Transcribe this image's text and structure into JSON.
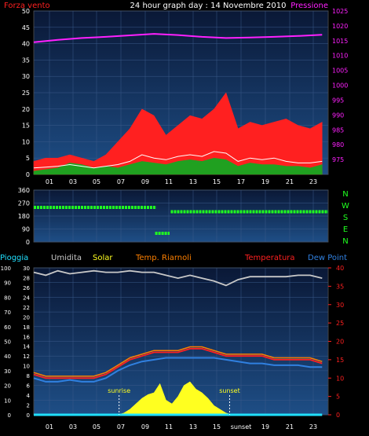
{
  "colors": {
    "background": "#000000",
    "plot_bg_top": "#0a1836",
    "plot_bg_bottom": "#1e4e86",
    "grid": "#3a5a8a",
    "wind_gust": "#ff2020",
    "wind_avg": "#ffffff",
    "wind_low": "#20a020",
    "pressure": "#ff20ff",
    "direction": "#20ff20",
    "humidity": "#c8c8c8",
    "temp": "#ff2020",
    "temp_room": "#ff8000",
    "dew_point": "#3080e0",
    "rain": "#20e0ff",
    "solar": "#ffff20",
    "tick_white": "#ffffff",
    "tick_green": "#20ff20"
  },
  "chart_data": [
    {
      "type": "line",
      "title": "24 hour graph day : 14 Novembre 2010",
      "left_label": "Forza vento",
      "right_label": "Pressione",
      "x_ticks": [
        "01",
        "03",
        "05",
        "07",
        "09",
        "11",
        "13",
        "15",
        "17",
        "19",
        "21",
        "23"
      ],
      "y_left": {
        "range": [
          0,
          50
        ],
        "ticks": [
          0,
          5,
          10,
          15,
          20,
          25,
          30,
          35,
          40,
          45,
          50
        ]
      },
      "y_right": {
        "range": [
          970,
          1025
        ],
        "ticks": [
          975,
          980,
          985,
          990,
          995,
          1000,
          1005,
          1010,
          1015,
          1020,
          1025
        ]
      },
      "series": [
        {
          "name": "Pressione",
          "axis": "right",
          "x": [
            0,
            2,
            4,
            6,
            8,
            10,
            12,
            14,
            16,
            18,
            20,
            22,
            24
          ],
          "values": [
            1014.5,
            1015.3,
            1015.9,
            1016.3,
            1016.8,
            1017.3,
            1016.9,
            1016.3,
            1015.9,
            1016.1,
            1016.3,
            1016.6,
            1017.0
          ]
        },
        {
          "name": "gust",
          "axis": "left",
          "x": [
            0,
            1,
            2,
            3,
            4,
            5,
            6,
            7,
            8,
            9,
            10,
            11,
            12,
            13,
            14,
            15,
            16,
            17,
            18,
            19,
            20,
            21,
            22,
            23,
            24
          ],
          "values": [
            4,
            5,
            5,
            6,
            5,
            4,
            6,
            10,
            14,
            20,
            18,
            12,
            15,
            18,
            17,
            20,
            25,
            14,
            16,
            15,
            16,
            17,
            15,
            14,
            16
          ]
        },
        {
          "name": "avg",
          "axis": "left",
          "x": [
            0,
            1,
            2,
            3,
            4,
            5,
            6,
            7,
            8,
            9,
            10,
            11,
            12,
            13,
            14,
            15,
            16,
            17,
            18,
            19,
            20,
            21,
            22,
            23,
            24
          ],
          "values": [
            2,
            2.2,
            2.5,
            3,
            2.5,
            2,
            2.5,
            3,
            4,
            6,
            5,
            4.5,
            5.5,
            6,
            5.5,
            7,
            6.5,
            4,
            5,
            4.5,
            5,
            4,
            3.5,
            3.5,
            4
          ]
        },
        {
          "name": "low",
          "axis": "left",
          "x": [
            0,
            1,
            2,
            3,
            4,
            5,
            6,
            7,
            8,
            9,
            10,
            11,
            12,
            13,
            14,
            15,
            16,
            17,
            18,
            19,
            20,
            21,
            22,
            23,
            24
          ],
          "values": [
            1,
            1.5,
            2,
            3.5,
            3,
            2,
            2.5,
            2,
            3,
            4,
            3.5,
            3,
            4,
            4.5,
            4,
            5,
            4.5,
            2.5,
            3.5,
            3,
            3,
            2.5,
            2.5,
            2,
            3
          ]
        }
      ]
    },
    {
      "type": "scatter",
      "y_left": {
        "range": [
          0,
          360
        ],
        "ticks": [
          0,
          90,
          180,
          270,
          360
        ]
      },
      "right_labels": [
        "N",
        "W",
        "S",
        "E",
        "N"
      ],
      "series": [
        {
          "name": "direction",
          "segments": [
            {
              "x_start": 0.0,
              "x_end": 10.2,
              "value": 240
            },
            {
              "x_start": 10.1,
              "x_end": 11.3,
              "value": 60
            },
            {
              "x_start": 11.4,
              "x_end": 24.5,
              "value": 210
            }
          ]
        }
      ]
    },
    {
      "type": "line",
      "legend": [
        "Pioggia",
        "Umidita",
        "Solar",
        "Temp. Riarnoli",
        "Temperatura",
        "Dew Point"
      ],
      "x_ticks": [
        "01",
        "03",
        "05",
        "07",
        "09",
        "11",
        "13",
        "15",
        "sunset",
        "19",
        "21",
        "23"
      ],
      "y_left": {
        "range": [
          0,
          100
        ],
        "ticks": [
          0,
          10,
          20,
          30,
          40,
          50,
          60,
          70,
          80,
          90,
          100
        ]
      },
      "y_left_alt": {
        "range": [
          0,
          30
        ],
        "ticks": [
          0,
          2,
          4,
          6,
          8,
          10,
          12,
          14,
          16,
          18,
          20,
          22,
          24,
          26,
          28,
          30
        ]
      },
      "y_right": {
        "range": [
          0,
          40
        ],
        "ticks": [
          0,
          5,
          10,
          15,
          20,
          25,
          30,
          35,
          40
        ]
      },
      "annotations": [
        {
          "text": "sunrise",
          "x": 7.1
        },
        {
          "text": "sunset",
          "x": 16.3
        }
      ],
      "series": [
        {
          "name": "Umidita",
          "axis": "left",
          "x": [
            0,
            1,
            2,
            3,
            4,
            5,
            6,
            7,
            8,
            9,
            10,
            11,
            12,
            13,
            14,
            15,
            16,
            17,
            18,
            19,
            20,
            21,
            22,
            23,
            24
          ],
          "values": [
            97,
            95,
            98,
            96,
            97,
            98,
            97,
            97,
            98,
            97,
            97,
            95,
            93,
            95,
            93,
            91,
            88,
            92,
            94,
            94,
            94,
            94,
            95,
            95,
            93
          ]
        },
        {
          "name": "Temperatura",
          "axis": "right",
          "x": [
            0,
            1,
            2,
            3,
            4,
            5,
            6,
            7,
            8,
            9,
            10,
            11,
            12,
            13,
            14,
            15,
            16,
            17,
            18,
            19,
            20,
            21,
            22,
            23,
            24
          ],
          "values": [
            11,
            10,
            10,
            10,
            10,
            10,
            11,
            13,
            15,
            16,
            17,
            17,
            17,
            18,
            18,
            17,
            16,
            16,
            16,
            16,
            15,
            15,
            15,
            15,
            14
          ]
        },
        {
          "name": "Temp. Riarnoli",
          "axis": "right",
          "x": [
            0,
            1,
            2,
            3,
            4,
            5,
            6,
            7,
            8,
            9,
            10,
            11,
            12,
            13,
            14,
            15,
            16,
            17,
            18,
            19,
            20,
            21,
            22,
            23,
            24
          ],
          "values": [
            11.5,
            10.5,
            10.5,
            10.5,
            10.5,
            10.5,
            11.5,
            13.5,
            15.5,
            16.5,
            17.5,
            17.5,
            17.5,
            18.5,
            18.5,
            17.5,
            16.5,
            16.5,
            16.5,
            16.5,
            15.5,
            15.5,
            15.5,
            15.5,
            14.5
          ]
        },
        {
          "name": "Dew Point",
          "axis": "right",
          "x": [
            0,
            1,
            2,
            3,
            4,
            5,
            6,
            7,
            8,
            9,
            10,
            11,
            12,
            13,
            14,
            15,
            16,
            17,
            18,
            19,
            20,
            21,
            22,
            23,
            24
          ],
          "values": [
            10,
            9,
            9,
            9.5,
            9,
            9,
            10,
            12,
            13.5,
            14.5,
            15,
            15.5,
            15.5,
            15.5,
            15.5,
            15.5,
            15,
            14.5,
            14,
            14,
            13.5,
            13.5,
            13.5,
            13,
            13
          ]
        },
        {
          "name": "Solar",
          "axis": "right",
          "x": [
            7,
            7.5,
            8,
            8.5,
            9,
            9.5,
            10,
            10.5,
            11,
            11.5,
            12,
            12.5,
            13,
            13.5,
            14,
            14.5,
            15,
            15.5,
            16,
            16.5
          ],
          "values": [
            0,
            0.5,
            1.5,
            3,
            4.5,
            5.5,
            6,
            8.5,
            4,
            3,
            5,
            8,
            9,
            7,
            6,
            4.5,
            2.5,
            1.5,
            0.5,
            0
          ]
        },
        {
          "name": "Pioggia",
          "axis": "left",
          "x": [
            0,
            24
          ],
          "values": [
            0,
            0
          ]
        }
      ]
    }
  ]
}
